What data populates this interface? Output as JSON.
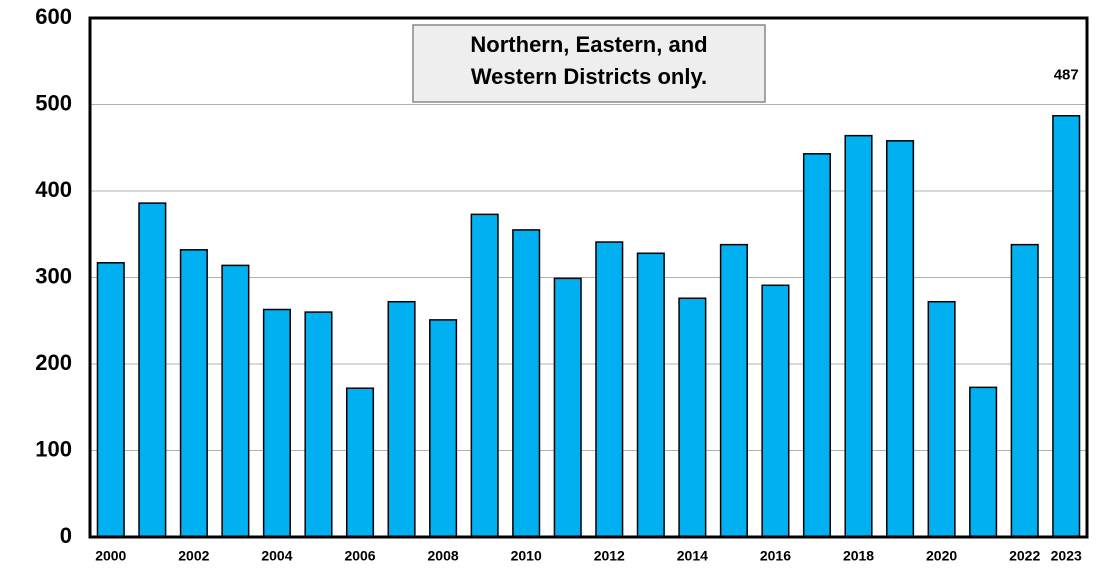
{
  "chart_data": {
    "type": "bar",
    "annotation": [
      "Northern, Eastern, and",
      "Western Districts only."
    ],
    "categories": [
      "2000",
      null,
      "2002",
      null,
      "2004",
      null,
      "2006",
      null,
      "2008",
      null,
      "2010",
      null,
      "2012",
      null,
      "2014",
      null,
      "2016",
      null,
      "2018",
      null,
      "2020",
      null,
      "2022",
      "2023"
    ],
    "values": [
      317,
      386,
      332,
      314,
      263,
      260,
      172,
      272,
      251,
      373,
      355,
      299,
      341,
      328,
      276,
      338,
      291,
      443,
      464,
      458,
      272,
      173,
      338,
      487
    ],
    "value_labels": [
      null,
      null,
      null,
      null,
      null,
      null,
      null,
      null,
      null,
      null,
      null,
      null,
      null,
      null,
      null,
      null,
      null,
      null,
      null,
      null,
      null,
      null,
      null,
      "487"
    ],
    "color": "#00b0f0",
    "ylim": [
      0,
      600
    ],
    "yticks": [
      0,
      100,
      200,
      300,
      400,
      500,
      600
    ],
    "grid": true
  }
}
